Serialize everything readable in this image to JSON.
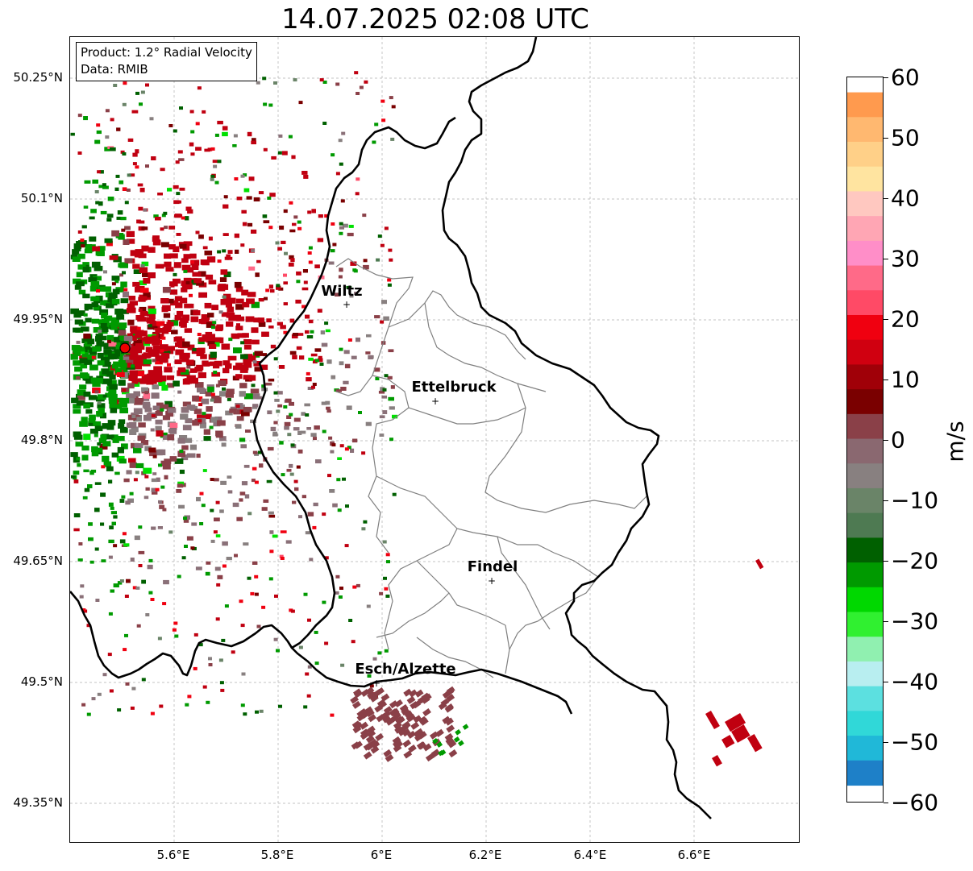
{
  "title": "14.07.2025 02:08 UTC",
  "info": {
    "line1": "Product: 1.2° Radial Velocity",
    "line2": "Data: RMIB"
  },
  "lat_labels": [
    "50.25°N",
    "50.1°N",
    "49.95°N",
    "49.8°N",
    "49.65°N",
    "49.5°N",
    "49.35°N"
  ],
  "lon_labels": [
    "5.6°E",
    "5.8°E",
    "6°E",
    "6.2°E",
    "6.4°E",
    "6.6°E"
  ],
  "cities": [
    {
      "name": "Wiltz"
    },
    {
      "name": "Ettelbruck"
    },
    {
      "name": "Findel"
    },
    {
      "name": "Esch/Alzette"
    }
  ],
  "colorbar": {
    "unit": "m/s",
    "ticks": [
      "60",
      "50",
      "40",
      "30",
      "20",
      "10",
      "0",
      "−10",
      "−20",
      "−30",
      "−40",
      "−50",
      "−60"
    ],
    "range": [
      -60,
      60
    ],
    "palette_top_to_bottom": [
      "#ff9a4e",
      "#ffb870",
      "#ffd088",
      "#ffe4a0",
      "#ffc8c0",
      "#ffa6b4",
      "#ff8ec8",
      "#ff6a88",
      "#ff4a66",
      "#f00010",
      "#d00010",
      "#a00008",
      "#7a0000",
      "#8a4048",
      "#8a6870",
      "#888080",
      "#6a8468",
      "#4e7a52",
      "#006000",
      "#009a00",
      "#00d800",
      "#30f030",
      "#90f0b0",
      "#b8eef0",
      "#5ce0e0",
      "#30d8d8",
      "#20b8d8",
      "#1e80c8"
    ],
    "color_stops": [
      {
        "v": 60,
        "c": "#ff9a4e"
      },
      {
        "v": 52,
        "c": "#ffc070"
      },
      {
        "v": 47,
        "c": "#ffe4a0"
      },
      {
        "v": 43,
        "c": "#ffc8c0"
      },
      {
        "v": 38,
        "c": "#ff90c8"
      },
      {
        "v": 33,
        "c": "#ff6a88"
      },
      {
        "v": 28,
        "c": "#ff4a66"
      },
      {
        "v": 27,
        "c": "#f00010"
      },
      {
        "v": 20,
        "c": "#c00010"
      },
      {
        "v": 11,
        "c": "#7a0000"
      },
      {
        "v": 8,
        "c": "#8a4048"
      },
      {
        "v": 3,
        "c": "#8a7078"
      },
      {
        "v": 0,
        "c": "#888080"
      },
      {
        "v": -2,
        "c": "#6a8468"
      },
      {
        "v": -6,
        "c": "#4e7a52"
      },
      {
        "v": -6.1,
        "c": "#006000"
      },
      {
        "v": -15,
        "c": "#009a00"
      },
      {
        "v": -24,
        "c": "#00e000"
      },
      {
        "v": -30,
        "c": "#30f030"
      },
      {
        "v": -36,
        "c": "#90f0b0"
      },
      {
        "v": -37,
        "c": "#b8eef0"
      },
      {
        "v": -45,
        "c": "#5ce0e0"
      },
      {
        "v": -53,
        "c": "#30d8d8"
      },
      {
        "v": -55,
        "c": "#20b8d8"
      },
      {
        "v": -60,
        "c": "#1e80c8"
      }
    ]
  }
}
